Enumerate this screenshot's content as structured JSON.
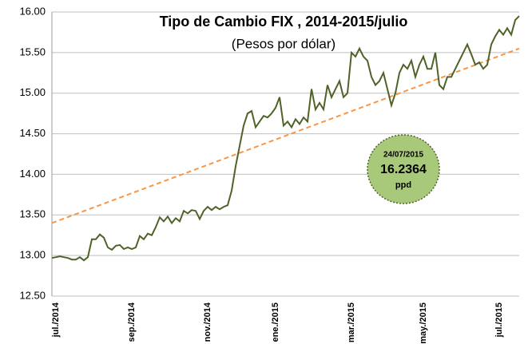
{
  "chart_data": {
    "type": "line",
    "title": "Tipo de Cambio FIX , 2014-2015/julio",
    "subtitle": "(Pesos por dólar)",
    "categories": [
      null,
      "jul./2014",
      null,
      null,
      null,
      null,
      null,
      null,
      null,
      null,
      null,
      null,
      null,
      null,
      null,
      null,
      null,
      null,
      null,
      null,
      "sep./2014",
      null,
      null,
      null,
      null,
      null,
      null,
      null,
      null,
      null,
      null,
      null,
      null,
      null,
      null,
      null,
      null,
      null,
      null,
      "nov./2014",
      null,
      null,
      null,
      null,
      null,
      null,
      null,
      null,
      null,
      null,
      null,
      null,
      null,
      null,
      null,
      null,
      "ene./2015",
      null,
      null,
      null,
      null,
      null,
      null,
      null,
      null,
      null,
      null,
      null,
      null,
      null,
      null,
      null,
      null,
      null,
      null,
      "mar./2015",
      null,
      null,
      null,
      null,
      null,
      null,
      null,
      null,
      null,
      null,
      null,
      null,
      null,
      null,
      null,
      null,
      null,
      "may./2015",
      null,
      null,
      null,
      null,
      null,
      null,
      null,
      null,
      null,
      null,
      null,
      null,
      null,
      null,
      null,
      null,
      null,
      null,
      "jul./2015",
      null,
      null,
      null,
      null,
      null
    ],
    "series": [
      {
        "name": "FIX",
        "color": "#4f6228",
        "values": [
          12.97,
          12.98,
          12.99,
          12.98,
          12.97,
          12.95,
          12.95,
          12.98,
          12.94,
          12.98,
          13.2,
          13.2,
          13.26,
          13.22,
          13.1,
          13.07,
          13.12,
          13.13,
          13.08,
          13.1,
          13.08,
          13.1,
          13.24,
          13.2,
          13.27,
          13.25,
          13.35,
          13.47,
          13.42,
          13.48,
          13.4,
          13.46,
          13.42,
          13.55,
          13.52,
          13.56,
          13.55,
          13.45,
          13.55,
          13.6,
          13.56,
          13.6,
          13.57,
          13.6,
          13.62,
          13.8,
          14.1,
          14.35,
          14.6,
          14.75,
          14.78,
          14.58,
          14.65,
          14.72,
          14.7,
          14.75,
          14.82,
          14.95,
          14.6,
          14.65,
          14.58,
          14.68,
          14.62,
          14.7,
          14.65,
          15.05,
          14.8,
          14.88,
          14.8,
          15.1,
          14.95,
          15.05,
          15.15,
          14.95,
          15.0,
          15.5,
          15.45,
          15.55,
          15.45,
          15.4,
          15.2,
          15.1,
          15.15,
          15.25,
          15.05,
          14.85,
          15.0,
          15.25,
          15.35,
          15.3,
          15.4,
          15.2,
          15.35,
          15.45,
          15.3,
          15.3,
          15.5,
          15.1,
          15.05,
          15.2,
          15.2,
          15.3,
          15.4,
          15.5,
          15.6,
          15.48,
          15.35,
          15.38,
          15.3,
          15.35,
          15.6,
          15.7,
          15.78,
          15.72,
          15.8,
          15.72,
          15.9,
          15.95
        ]
      }
    ],
    "trend": {
      "start": 13.4,
      "end": 15.55,
      "color": "#f79646"
    },
    "annotation": {
      "date": "24/07/2015",
      "value": "16.2364",
      "unit": "ppd",
      "color": "#a9c97a"
    },
    "ylim": [
      12.5,
      16.0
    ],
    "yticks": [
      {
        "value": 12.5,
        "label": "12.50"
      },
      {
        "value": 13.0,
        "label": "13.00"
      },
      {
        "value": 13.5,
        "label": "13.50"
      },
      {
        "value": 14.0,
        "label": "14.00"
      },
      {
        "value": 14.5,
        "label": "14.50"
      },
      {
        "value": 15.0,
        "label": "15.00"
      },
      {
        "value": 15.5,
        "label": "15.50"
      },
      {
        "value": 16.0,
        "label": "16.00"
      }
    ],
    "grid": true
  }
}
